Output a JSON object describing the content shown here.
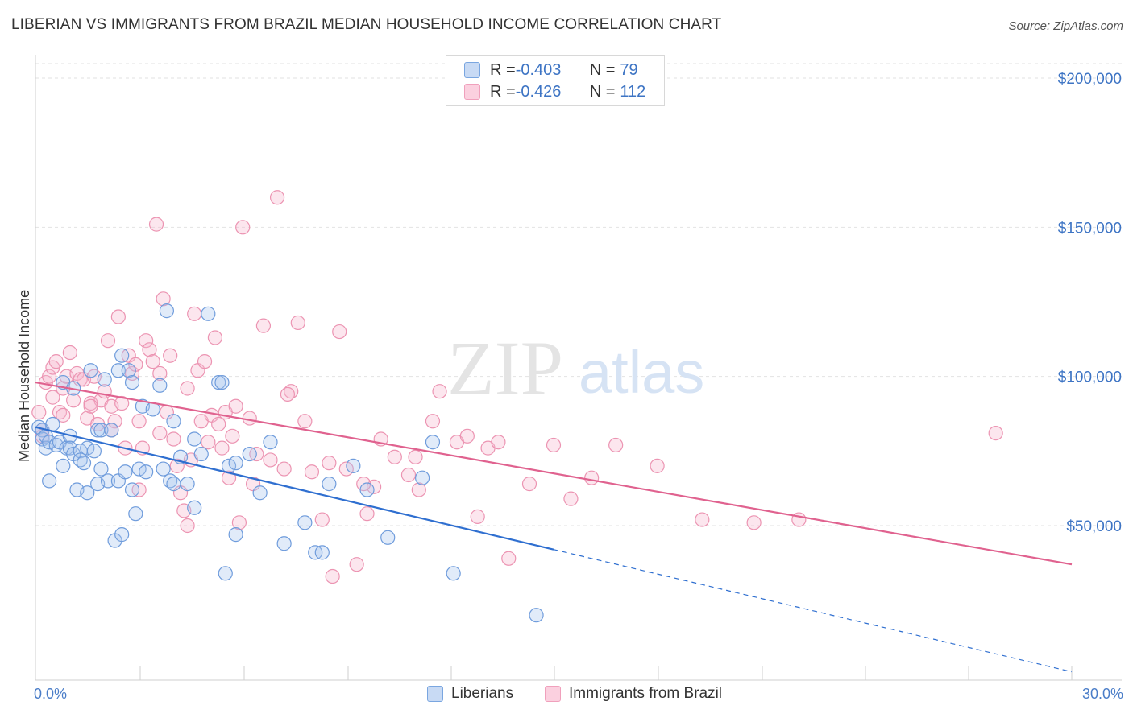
{
  "title": "LIBERIAN VS IMMIGRANTS FROM BRAZIL MEDIAN HOUSEHOLD INCOME CORRELATION CHART",
  "source": "Source: ZipAtlas.com",
  "watermark": {
    "zip": "ZIP",
    "atlas": "atlas"
  },
  "legend_top": [
    {
      "r_label": "R = ",
      "r_value": "-0.403",
      "n_label": "N = ",
      "n_value": "79",
      "color": "#7aa6e0"
    },
    {
      "r_label": "R = ",
      "r_value": "-0.426",
      "n_label": "N = ",
      "n_value": "112",
      "color": "#f0a0bc"
    }
  ],
  "chart_data": {
    "type": "scatter",
    "title": "LIBERIAN VS IMMIGRANTS FROM BRAZIL MEDIAN HOUSEHOLD INCOME CORRELATION CHART",
    "xlabel": "",
    "ylabel": "Median Household Income",
    "xlim": [
      0,
      30
    ],
    "ylim": [
      0,
      210000
    ],
    "x_tick_labels": [
      "0.0%",
      "30.0%"
    ],
    "y_ticks": [
      50000,
      100000,
      150000,
      200000
    ],
    "y_tick_labels": [
      "$50,000",
      "$100,000",
      "$150,000",
      "$200,000"
    ],
    "grid": true,
    "legend_position": "bottom-center",
    "series": [
      {
        "name": "Liberians",
        "color": "#7aa6e0",
        "line_color": "#2f6fd0",
        "trend": {
          "x0": 0,
          "y0": 83000,
          "x1": 15,
          "y1": 42000,
          "dash_to_x": 30,
          "dash_to_y": 1000
        },
        "points": [
          [
            0.1,
            83000
          ],
          [
            0.2,
            82000
          ],
          [
            0.2,
            79000
          ],
          [
            0.3,
            80000
          ],
          [
            0.3,
            76000
          ],
          [
            0.4,
            78000
          ],
          [
            0.4,
            65000
          ],
          [
            0.5,
            84000
          ],
          [
            0.6,
            77000
          ],
          [
            0.7,
            78000
          ],
          [
            0.8,
            70000
          ],
          [
            0.8,
            98000
          ],
          [
            0.9,
            76000
          ],
          [
            1.0,
            80000
          ],
          [
            1.0,
            76000
          ],
          [
            1.1,
            74000
          ],
          [
            1.1,
            96000
          ],
          [
            1.2,
            62000
          ],
          [
            1.3,
            75000
          ],
          [
            1.3,
            72000
          ],
          [
            1.4,
            71000
          ],
          [
            1.5,
            61000
          ],
          [
            1.5,
            76000
          ],
          [
            1.6,
            102000
          ],
          [
            1.7,
            75000
          ],
          [
            1.8,
            82000
          ],
          [
            1.8,
            64000
          ],
          [
            1.9,
            69000
          ],
          [
            1.9,
            82000
          ],
          [
            2.0,
            99000
          ],
          [
            2.1,
            65000
          ],
          [
            2.2,
            82000
          ],
          [
            2.3,
            45000
          ],
          [
            2.4,
            65000
          ],
          [
            2.4,
            102000
          ],
          [
            2.5,
            107000
          ],
          [
            2.5,
            47000
          ],
          [
            2.6,
            68000
          ],
          [
            2.7,
            102000
          ],
          [
            2.8,
            62000
          ],
          [
            2.8,
            98000
          ],
          [
            2.9,
            54000
          ],
          [
            3.0,
            69000
          ],
          [
            3.1,
            90000
          ],
          [
            3.2,
            68000
          ],
          [
            3.4,
            89000
          ],
          [
            3.6,
            97000
          ],
          [
            3.7,
            69000
          ],
          [
            3.8,
            122000
          ],
          [
            3.9,
            65000
          ],
          [
            4.0,
            64000
          ],
          [
            4.0,
            85000
          ],
          [
            4.2,
            73000
          ],
          [
            4.4,
            64000
          ],
          [
            4.6,
            56000
          ],
          [
            4.6,
            79000
          ],
          [
            4.8,
            74000
          ],
          [
            5.0,
            121000
          ],
          [
            5.3,
            98000
          ],
          [
            5.4,
            98000
          ],
          [
            5.5,
            34000
          ],
          [
            5.6,
            70000
          ],
          [
            5.8,
            47000
          ],
          [
            5.8,
            71000
          ],
          [
            6.2,
            74000
          ],
          [
            6.5,
            61000
          ],
          [
            6.8,
            78000
          ],
          [
            7.2,
            44000
          ],
          [
            7.8,
            51000
          ],
          [
            8.1,
            41000
          ],
          [
            8.3,
            41000
          ],
          [
            9.2,
            70000
          ],
          [
            9.6,
            62000
          ],
          [
            10.2,
            46000
          ],
          [
            11.2,
            66000
          ],
          [
            11.5,
            78000
          ],
          [
            12.1,
            34000
          ],
          [
            14.5,
            20000
          ],
          [
            8.5,
            64000
          ]
        ]
      },
      {
        "name": "Immigrants from Brazil",
        "color": "#f0a0bc",
        "line_color": "#e0628f",
        "trend": {
          "x0": 0,
          "y0": 98000,
          "x1": 30,
          "y1": 37000
        },
        "points": [
          [
            0.1,
            88000
          ],
          [
            0.2,
            82000
          ],
          [
            0.3,
            98000
          ],
          [
            0.4,
            100000
          ],
          [
            0.5,
            103000
          ],
          [
            0.6,
            105000
          ],
          [
            0.7,
            88000
          ],
          [
            0.8,
            96000
          ],
          [
            0.9,
            100000
          ],
          [
            1.0,
            108000
          ],
          [
            1.1,
            92000
          ],
          [
            1.2,
            101000
          ],
          [
            1.3,
            99000
          ],
          [
            1.4,
            99000
          ],
          [
            1.5,
            86000
          ],
          [
            1.6,
            91000
          ],
          [
            1.7,
            100000
          ],
          [
            1.8,
            84000
          ],
          [
            1.9,
            92000
          ],
          [
            2.0,
            95000
          ],
          [
            2.1,
            112000
          ],
          [
            2.2,
            90000
          ],
          [
            2.3,
            85000
          ],
          [
            2.4,
            120000
          ],
          [
            2.5,
            91000
          ],
          [
            2.6,
            76000
          ],
          [
            2.7,
            107000
          ],
          [
            2.8,
            101000
          ],
          [
            2.9,
            104000
          ],
          [
            3.0,
            85000
          ],
          [
            3.1,
            76000
          ],
          [
            3.2,
            112000
          ],
          [
            3.3,
            109000
          ],
          [
            3.4,
            105000
          ],
          [
            3.5,
            151000
          ],
          [
            3.6,
            101000
          ],
          [
            3.7,
            126000
          ],
          [
            3.8,
            88000
          ],
          [
            3.9,
            107000
          ],
          [
            4.0,
            79000
          ],
          [
            4.1,
            70000
          ],
          [
            4.2,
            61000
          ],
          [
            4.3,
            55000
          ],
          [
            4.4,
            50000
          ],
          [
            4.5,
            72000
          ],
          [
            4.6,
            121000
          ],
          [
            4.7,
            102000
          ],
          [
            4.8,
            85000
          ],
          [
            4.9,
            105000
          ],
          [
            5.0,
            78000
          ],
          [
            5.1,
            87000
          ],
          [
            5.2,
            113000
          ],
          [
            5.3,
            84000
          ],
          [
            5.4,
            76000
          ],
          [
            5.5,
            88000
          ],
          [
            5.6,
            66000
          ],
          [
            5.7,
            80000
          ],
          [
            5.8,
            90000
          ],
          [
            5.9,
            51000
          ],
          [
            6.0,
            150000
          ],
          [
            6.2,
            86000
          ],
          [
            6.4,
            74000
          ],
          [
            6.6,
            117000
          ],
          [
            6.8,
            72000
          ],
          [
            7.0,
            160000
          ],
          [
            7.2,
            69000
          ],
          [
            7.4,
            95000
          ],
          [
            7.6,
            118000
          ],
          [
            7.8,
            85000
          ],
          [
            8.0,
            68000
          ],
          [
            8.3,
            52000
          ],
          [
            8.5,
            71000
          ],
          [
            8.6,
            33000
          ],
          [
            8.8,
            115000
          ],
          [
            9.0,
            69000
          ],
          [
            9.3,
            37000
          ],
          [
            9.6,
            54000
          ],
          [
            9.8,
            63000
          ],
          [
            10.0,
            79000
          ],
          [
            10.4,
            73000
          ],
          [
            10.8,
            67000
          ],
          [
            11.1,
            62000
          ],
          [
            11.5,
            85000
          ],
          [
            11.7,
            95000
          ],
          [
            12.2,
            78000
          ],
          [
            12.5,
            80000
          ],
          [
            12.8,
            53000
          ],
          [
            13.1,
            76000
          ],
          [
            13.4,
            78000
          ],
          [
            13.7,
            39000
          ],
          [
            14.3,
            64000
          ],
          [
            15.0,
            77000
          ],
          [
            15.5,
            59000
          ],
          [
            16.1,
            66000
          ],
          [
            16.8,
            77000
          ],
          [
            18.0,
            70000
          ],
          [
            19.3,
            52000
          ],
          [
            20.8,
            51000
          ],
          [
            22.1,
            52000
          ],
          [
            27.8,
            81000
          ],
          [
            0.2,
            80000
          ],
          [
            0.5,
            93000
          ],
          [
            0.8,
            87000
          ],
          [
            1.6,
            90000
          ],
          [
            2.2,
            82000
          ],
          [
            3.0,
            62000
          ],
          [
            3.6,
            81000
          ],
          [
            4.4,
            96000
          ],
          [
            6.3,
            64000
          ],
          [
            7.3,
            94000
          ],
          [
            9.5,
            64000
          ],
          [
            11.0,
            73000
          ]
        ]
      }
    ]
  }
}
